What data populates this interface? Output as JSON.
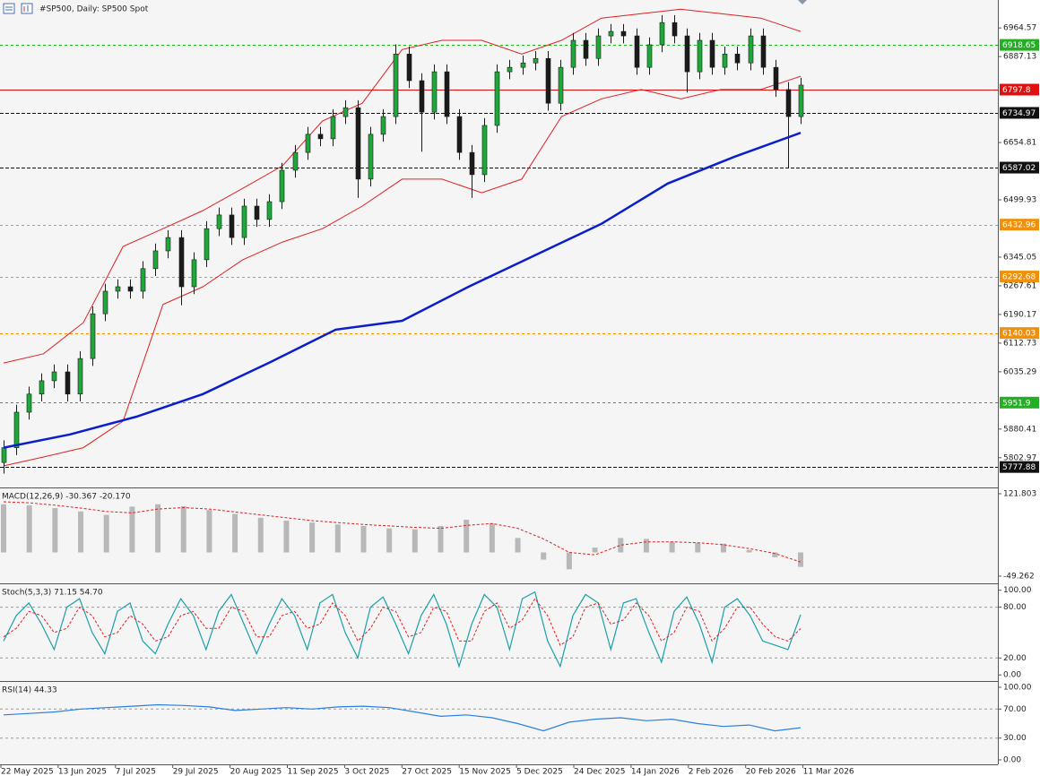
{
  "header": {
    "title": "#SP500, Daily:  SP500 Spot"
  },
  "chart_data": [
    {
      "type": "candlestick",
      "up_color": "#1fa83a",
      "down_color": "#1a1a1a",
      "ylim": [
        5725,
        7040
      ],
      "yticks": [
        6964.57,
        6887.13,
        6654.81,
        6499.93,
        6345.05,
        6267.61,
        6190.17,
        6112.73,
        6035.29,
        5880.41,
        5802.97
      ],
      "x_labels": [
        "22 May 2025",
        "13 Jun 2025",
        "7 Jul 2025",
        "29 Jul 2025",
        "20 Aug 2025",
        "11 Sep 2025",
        "3 Oct 2025",
        "27 Oct 2025",
        "15 Nov 2025",
        "5 Dec 2025",
        "24 Dec 2025",
        "14 Jan 2026",
        "2 Feb 2026",
        "20 Feb 2026",
        "11 Mar 2026"
      ],
      "open": [
        5790,
        5830,
        5926,
        5975,
        6011,
        6035,
        5975,
        6071,
        6192,
        6253,
        6265,
        6253,
        6314,
        6362,
        6398,
        6265,
        6338,
        6422,
        6459,
        6398,
        6483,
        6447,
        6495,
        6580,
        6628,
        6677,
        6665,
        6725,
        6749,
        6556,
        6677,
        6725,
        6894,
        6822,
        6737,
        6846,
        6725,
        6628,
        6568,
        6701,
        6846,
        6858,
        6870,
        6882,
        6761,
        6858,
        6931,
        6882,
        6943,
        6955,
        6943,
        6858,
        6919,
        6979,
        6943,
        6846,
        6931,
        6858,
        6894,
        6870,
        6943,
        6858,
        6798,
        6725
      ],
      "high": [
        5850,
        5946,
        5995,
        6031,
        6055,
        6055,
        6091,
        6212,
        6273,
        6285,
        6285,
        6334,
        6382,
        6418,
        6418,
        6358,
        6442,
        6479,
        6479,
        6503,
        6503,
        6515,
        6600,
        6648,
        6697,
        6697,
        6745,
        6769,
        6769,
        6697,
        6745,
        6920,
        6914,
        6842,
        6866,
        6866,
        6745,
        6648,
        6721,
        6866,
        6878,
        6890,
        6902,
        6902,
        6878,
        6951,
        6951,
        6963,
        6975,
        6975,
        6963,
        6939,
        6999,
        6999,
        6963,
        6951,
        6951,
        6914,
        6914,
        6963,
        6963,
        6878,
        6818,
        6830
      ],
      "low": [
        5760,
        5810,
        5906,
        5955,
        5991,
        5955,
        5955,
        6051,
        6172,
        6233,
        6233,
        6233,
        6294,
        6342,
        6215,
        6245,
        6318,
        6402,
        6378,
        6378,
        6427,
        6427,
        6475,
        6560,
        6608,
        6645,
        6645,
        6705,
        6505,
        6536,
        6657,
        6705,
        6802,
        6630,
        6717,
        6705,
        6608,
        6505,
        6548,
        6681,
        6826,
        6838,
        6850,
        6741,
        6741,
        6838,
        6862,
        6862,
        6923,
        6923,
        6838,
        6838,
        6899,
        6923,
        6790,
        6826,
        6838,
        6838,
        6850,
        6850,
        6838,
        6778,
        6587,
        6705
      ],
      "close": [
        5830,
        5926,
        5975,
        6011,
        6035,
        5975,
        6071,
        6192,
        6253,
        6265,
        6253,
        6314,
        6362,
        6398,
        6265,
        6338,
        6422,
        6459,
        6398,
        6483,
        6447,
        6495,
        6580,
        6628,
        6677,
        6665,
        6725,
        6749,
        6556,
        6677,
        6725,
        6894,
        6822,
        6737,
        6846,
        6725,
        6628,
        6568,
        6701,
        6846,
        6858,
        6870,
        6882,
        6761,
        6858,
        6931,
        6882,
        6943,
        6955,
        6943,
        6858,
        6919,
        6979,
        6943,
        6846,
        6931,
        6858,
        6894,
        6870,
        6943,
        6858,
        6798,
        6725,
        6810
      ],
      "ma": {
        "color": "#0a1ecc",
        "values": [
          5830,
          5866,
          5914,
          5975,
          6060,
          6149,
          6173,
          6265,
          6350,
          6435,
          6544,
          6616,
          6681
        ]
      },
      "bands": {
        "color": "#e02020",
        "upper": [
          6059,
          6084,
          6168,
          6374,
          6422,
          6471,
          6531,
          6592,
          6713,
          6761,
          6906,
          6931,
          6931,
          6894,
          6931,
          6991,
          7003,
          7015,
          7003,
          6991,
          6955
        ],
        "lower": [
          5781,
          5805,
          5830,
          5902,
          6217,
          6265,
          6338,
          6386,
          6422,
          6483,
          6556,
          6556,
          6519,
          6556,
          6725,
          6773,
          6798,
          6773,
          6798,
          6798,
          6834
        ]
      },
      "levels": [
        {
          "value": 6918.65,
          "color": "#22b022",
          "style": "dashed"
        },
        {
          "value": 6797.8,
          "color": "#e01010",
          "style": "solid"
        },
        {
          "value": 6734.97,
          "color": "#111111",
          "style": "dashed"
        },
        {
          "value": 6587.02,
          "color": "#111111",
          "style": "dashed"
        },
        {
          "value": 6432.96,
          "color": "#f0900a",
          "style": "dashed"
        },
        {
          "value": 6292.68,
          "color": "#f0900a",
          "style": "dashed"
        },
        {
          "value": 6140.03,
          "color": "#f0900a",
          "style": "dashed"
        },
        {
          "value": 5951.9,
          "color": "#22b022",
          "style": "dashed"
        },
        {
          "value": 5777.88,
          "color": "#111111",
          "style": "dashed"
        }
      ]
    },
    {
      "type": "macd",
      "label": "MACD(12,26,9) -30.367 -20.170",
      "ylim": [
        -58.6,
        131.1
      ],
      "yticks": [
        121.803,
        -49.262
      ],
      "hist_color": "#b8b8b8",
      "signal_color": "#e02020",
      "histogram": [
        100,
        98,
        92,
        85,
        78,
        95,
        100,
        96,
        88,
        80,
        72,
        66,
        62,
        58,
        55,
        50,
        48,
        55,
        68,
        60,
        30,
        -15,
        -35,
        10,
        30,
        28,
        22,
        20,
        18,
        5,
        -10,
        -30
      ],
      "signal": [
        105,
        103,
        98,
        92,
        85,
        82,
        90,
        93,
        90,
        84,
        78,
        72,
        66,
        62,
        58,
        55,
        52,
        50,
        56,
        60,
        50,
        28,
        0,
        -5,
        15,
        22,
        22,
        20,
        16,
        8,
        -2,
        -20
      ]
    },
    {
      "type": "stochastic",
      "label": "Stoch(5,3,3) 71.15 54.70",
      "ylim": [
        -4,
        106
      ],
      "yticks": [
        {
          "value": 100,
          "label": "100.00"
        },
        {
          "value": 80,
          "label": "80.00"
        },
        {
          "value": 20,
          "label": "20.00"
        },
        {
          "value": 0,
          "label": "0.00"
        }
      ],
      "main_color": "#1aa0a8",
      "signal_color": "#e02020",
      "main": [
        40,
        70,
        85,
        60,
        30,
        80,
        90,
        50,
        25,
        75,
        85,
        40,
        25,
        60,
        90,
        70,
        30,
        75,
        95,
        60,
        25,
        60,
        90,
        70,
        30,
        85,
        95,
        50,
        20,
        80,
        92,
        60,
        25,
        70,
        95,
        60,
        10,
        60,
        95,
        80,
        30,
        90,
        98,
        40,
        10,
        70,
        95,
        85,
        30,
        85,
        90,
        50,
        15,
        75,
        92,
        60,
        15,
        80,
        90,
        70,
        40,
        35,
        30,
        71.15
      ],
      "signal": [
        45,
        55,
        75,
        70,
        50,
        55,
        80,
        70,
        45,
        50,
        70,
        60,
        40,
        45,
        70,
        75,
        55,
        55,
        80,
        75,
        45,
        45,
        70,
        75,
        55,
        60,
        85,
        70,
        40,
        55,
        80,
        75,
        45,
        50,
        80,
        75,
        40,
        40,
        75,
        85,
        55,
        65,
        90,
        70,
        35,
        45,
        80,
        85,
        60,
        65,
        85,
        70,
        40,
        50,
        80,
        75,
        40,
        55,
        80,
        80,
        60,
        45,
        40,
        54.7
      ]
    },
    {
      "type": "rsi",
      "label": "RSI(14) 44.33",
      "ylim": [
        -6.2,
        106.2
      ],
      "yticks": [
        {
          "value": 100,
          "label": "100.00"
        },
        {
          "value": 70,
          "label": "70.00"
        },
        {
          "value": 30,
          "label": "30.00"
        },
        {
          "value": 0,
          "label": "0.00"
        }
      ],
      "color": "#2a7fe0",
      "values": [
        62,
        64,
        66,
        70,
        72,
        74,
        76,
        75,
        73,
        68,
        70,
        72,
        70,
        73,
        74,
        72,
        66,
        60,
        62,
        58,
        50,
        40,
        52,
        56,
        58,
        54,
        56,
        50,
        46,
        48,
        40,
        44.33
      ]
    }
  ]
}
